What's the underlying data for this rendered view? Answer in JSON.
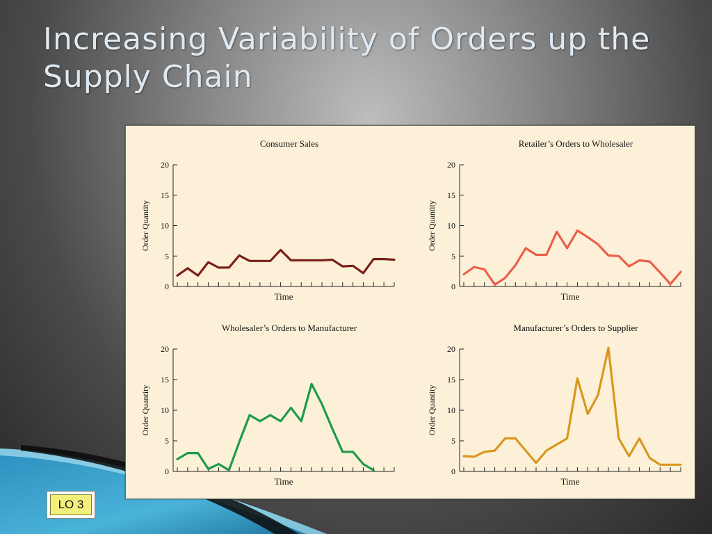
{
  "slide": {
    "title": "Increasing Variability of Orders up the Supply Chain",
    "badge": "LO 3"
  },
  "colors": {
    "panel_bg": "#fcf1d8",
    "consumer": "#7a1f1a",
    "retailer": "#ec5e4a",
    "wholesaler": "#1f9a4a",
    "manufacturer": "#d9971e"
  },
  "chart_data": [
    {
      "type": "line",
      "title": "Consumer Sales",
      "xlabel": "Time",
      "ylabel": "Order Quantity",
      "ylim": [
        0,
        20
      ],
      "yticks": [
        0,
        5,
        10,
        15,
        20
      ],
      "grid": false,
      "color": "#7a1f1a",
      "x": [
        0,
        1,
        2,
        3,
        4,
        5,
        6,
        7,
        8,
        9,
        10,
        11,
        12,
        13,
        14,
        15,
        16,
        17,
        18,
        19,
        20,
        21
      ],
      "values": [
        1.8,
        3.0,
        1.8,
        4.0,
        3.1,
        3.1,
        5.1,
        4.2,
        4.2,
        4.2,
        6.0,
        4.3,
        4.3,
        4.3,
        4.3,
        4.4,
        3.3,
        3.4,
        2.2,
        4.5,
        4.5,
        4.4
      ]
    },
    {
      "type": "line",
      "title": "Retailer’s Orders to Wholesaler",
      "xlabel": "Time",
      "ylabel": "Order Quantity",
      "ylim": [
        0,
        20
      ],
      "yticks": [
        0,
        5,
        10,
        15,
        20
      ],
      "grid": false,
      "color": "#ec5e4a",
      "x": [
        0,
        1,
        2,
        3,
        4,
        5,
        6,
        7,
        8,
        9,
        10,
        11,
        12,
        13,
        14,
        15,
        16,
        17,
        18,
        19,
        20,
        21
      ],
      "values": [
        2.0,
        3.2,
        2.8,
        0.3,
        1.4,
        3.5,
        6.3,
        5.2,
        5.2,
        9.0,
        6.3,
        9.2,
        8.1,
        6.9,
        5.1,
        5.0,
        3.3,
        4.3,
        4.1,
        2.3,
        0.4,
        2.4
      ]
    },
    {
      "type": "line",
      "title": "Wholesaler’s Orders to Manufacturer",
      "xlabel": "Time",
      "ylabel": "Order Quantity",
      "ylim": [
        0,
        20
      ],
      "yticks": [
        0,
        5,
        10,
        15,
        20
      ],
      "grid": false,
      "color": "#1f9a4a",
      "x": [
        0,
        1,
        2,
        3,
        4,
        5,
        6,
        7,
        8,
        9,
        10,
        11,
        12,
        13,
        14,
        15,
        16,
        17,
        18,
        19
      ],
      "values": [
        2.0,
        3.0,
        3.0,
        0.4,
        1.2,
        0.2,
        4.8,
        9.2,
        8.2,
        9.2,
        8.2,
        10.4,
        8.2,
        14.3,
        11.0,
        7.0,
        3.2,
        3.2,
        1.2,
        0.2
      ]
    },
    {
      "type": "line",
      "title": "Manufacturer’s Orders to Supplier",
      "xlabel": "Time",
      "ylabel": "Order Quantity",
      "ylim": [
        0,
        20
      ],
      "yticks": [
        0,
        5,
        10,
        15,
        20
      ],
      "grid": false,
      "color": "#d9971e",
      "x": [
        0,
        1,
        2,
        3,
        4,
        5,
        6,
        7,
        8,
        9,
        10,
        11,
        12,
        13,
        14,
        15,
        16,
        17,
        18,
        19,
        20,
        21
      ],
      "values": [
        2.5,
        2.4,
        3.2,
        3.4,
        5.4,
        5.4,
        3.4,
        1.4,
        3.4,
        4.4,
        5.4,
        15.2,
        9.4,
        12.5,
        20.2,
        5.4,
        2.5,
        5.4,
        2.2,
        1.1,
        1.1,
        1.1
      ]
    }
  ]
}
